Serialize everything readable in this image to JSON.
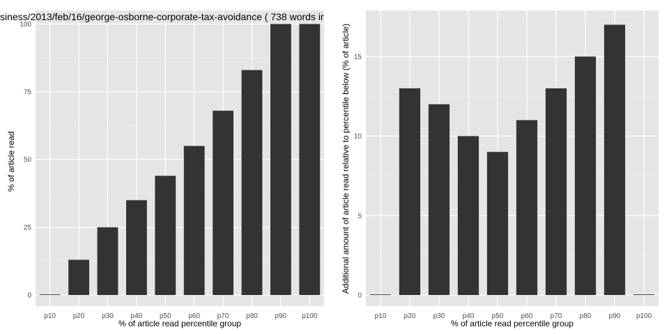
{
  "chart_data": [
    {
      "type": "bar",
      "title": "siness/2013/feb/16/george-osborne-corporate-tax-avoidance ( 738 words ir",
      "xlabel": "% of article read percentile group",
      "ylabel": "% of article read",
      "categories": [
        "p10",
        "p20",
        "p30",
        "p40",
        "p50",
        "p60",
        "p70",
        "p80",
        "p90",
        "p100"
      ],
      "values": [
        0,
        13,
        25,
        35,
        44,
        55,
        68,
        83,
        100,
        100
      ],
      "ylim": [
        0,
        105
      ],
      "yticks": [
        0,
        25,
        50,
        75,
        100
      ],
      "grid": true,
      "background": "#e5e5e5",
      "bar_color": "#333333"
    },
    {
      "type": "bar",
      "title": "",
      "xlabel": "% of article read percentile group",
      "ylabel": "Additional amount of article read relative to percentile below (% of article)",
      "categories": [
        "p10",
        "p20",
        "p30",
        "p40",
        "p50",
        "p60",
        "p70",
        "p80",
        "p90",
        "p100"
      ],
      "values": [
        0,
        13,
        12,
        10,
        9,
        11,
        13,
        15,
        17,
        0
      ],
      "ylim": [
        0,
        17.9
      ],
      "yticks": [
        0,
        5,
        10,
        15
      ],
      "grid": true,
      "background": "#e5e5e5",
      "bar_color": "#333333"
    }
  ]
}
